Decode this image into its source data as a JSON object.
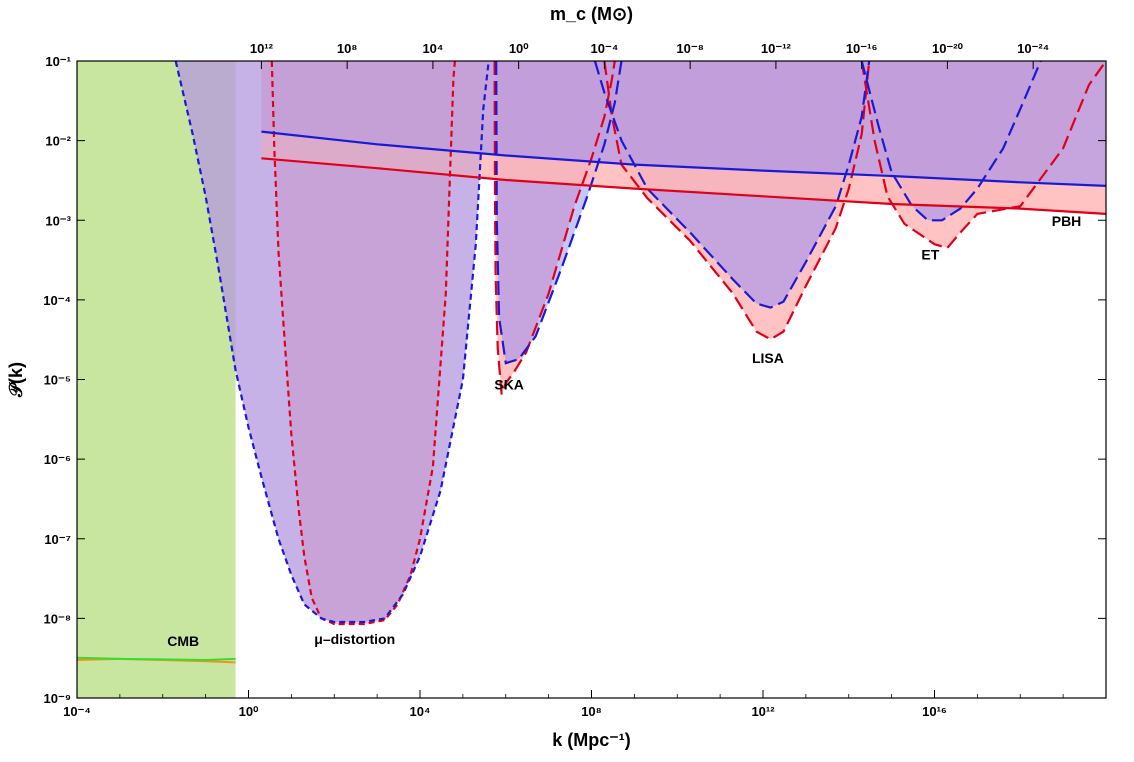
{
  "chart_data": {
    "type": "line",
    "x_scale": "log",
    "y_scale": "log",
    "xlim": [
      0.0001,
      1e+20
    ],
    "ylim": [
      1e-09,
      0.1
    ],
    "grid": false,
    "xlabel": "k (Mpc⁻¹)",
    "ylabel": "𝒫(k)",
    "top_axis_label": "m_c (M⊙)",
    "x_ticks": [
      {
        "value": 0.0001,
        "label": "10⁻⁴"
      },
      {
        "value": 1,
        "label": "10⁰"
      },
      {
        "value": 10000,
        "label": "10⁴"
      },
      {
        "value": 100000000.0,
        "label": "10⁸"
      },
      {
        "value": 1000000000000.0,
        "label": "10¹²"
      },
      {
        "value": 1e+16,
        "label": "10¹⁶"
      }
    ],
    "y_ticks": [
      {
        "value": 1e-09,
        "label": "10⁻⁹"
      },
      {
        "value": 1e-08,
        "label": "10⁻⁸"
      },
      {
        "value": 1e-07,
        "label": "10⁻⁷"
      },
      {
        "value": 1e-06,
        "label": "10⁻⁶"
      },
      {
        "value": 1e-05,
        "label": "10⁻⁵"
      },
      {
        "value": 0.0001,
        "label": "10⁻⁴"
      },
      {
        "value": 0.001,
        "label": "10⁻³"
      },
      {
        "value": 0.01,
        "label": "10⁻²"
      },
      {
        "value": 0.1,
        "label": "10⁻¹"
      }
    ],
    "top_ticks": [
      {
        "k": 2,
        "label": "10¹²"
      },
      {
        "k": 200,
        "label": "10⁸"
      },
      {
        "k": 20000,
        "label": "10⁴"
      },
      {
        "k": 2000000,
        "label": "10⁰"
      },
      {
        "k": 200000000,
        "label": "10⁻⁴"
      },
      {
        "k": 20000000000,
        "label": "10⁻⁸"
      },
      {
        "k": 2000000000000,
        "label": "10⁻¹²"
      },
      {
        "k": 200000000000000,
        "label": "10⁻¹⁶"
      },
      {
        "k": 20000000000000000,
        "label": "10⁻²⁰"
      },
      {
        "k": 2e+18,
        "label": "10⁻²⁴"
      }
    ],
    "annotations": [
      {
        "text": "CMB",
        "k": 0.03,
        "p": 4.5e-09
      },
      {
        "text": "μ–distortion",
        "k": 300,
        "p": 4.8e-09
      },
      {
        "text": "SKA",
        "k": 1200000,
        "p": 7.5e-06
      },
      {
        "text": "LISA",
        "k": 1300000000000.0,
        "p": 1.6e-05
      },
      {
        "text": "ET",
        "k": 8000000000000000,
        "p": 0.00032
      },
      {
        "text": "PBH",
        "k": 1.2e+19,
        "p": 0.00085
      }
    ],
    "regions": [
      {
        "name": "CMB",
        "type": "band",
        "color": "#c8e6a0",
        "k_min": 0.0001,
        "k_max": 0.5
      },
      {
        "name": "μ–distortion",
        "type": "bound",
        "color": "#c9a3d4",
        "red": [
          [
            3.5,
            0.1
          ],
          [
            4,
            0.008
          ],
          [
            5,
            0.0004
          ],
          [
            7,
            3e-05
          ],
          [
            10,
            2e-06
          ],
          [
            15,
            2.2e-07
          ],
          [
            20,
            6e-08
          ],
          [
            30,
            1.8e-08
          ],
          [
            50,
            1e-08
          ],
          [
            100,
            8.5e-09
          ],
          [
            500,
            8.5e-09
          ],
          [
            1500,
            9.5e-09
          ],
          [
            3000,
            1.5e-08
          ],
          [
            6000,
            3.5e-08
          ],
          [
            10000,
            1e-07
          ],
          [
            20000,
            8e-07
          ],
          [
            40000,
            0.00012
          ],
          [
            60000,
            0.06
          ],
          [
            65000,
            0.1
          ]
        ],
        "blue": [
          [
            0.02,
            0.1
          ],
          [
            0.05,
            0.012
          ],
          [
            0.1,
            0.002
          ],
          [
            0.2,
            0.00025
          ],
          [
            0.5,
            1.3e-05
          ],
          [
            1,
            2.5e-06
          ],
          [
            2,
            6e-07
          ],
          [
            5,
            1e-07
          ],
          [
            10,
            3.5e-08
          ],
          [
            20,
            1.5e-08
          ],
          [
            50,
            1e-08
          ],
          [
            100,
            9e-09
          ],
          [
            500,
            9e-09
          ],
          [
            1500,
            1e-08
          ],
          [
            4000,
            2e-08
          ],
          [
            10000,
            6e-08
          ],
          [
            30000,
            4e-07
          ],
          [
            100000,
            1e-05
          ],
          [
            200000,
            0.0005
          ],
          [
            300000,
            0.025
          ],
          [
            400000,
            0.1
          ]
        ]
      },
      {
        "name": "SKA",
        "type": "bound",
        "color": "#c9a3d4",
        "red": [
          [
            550000,
            0.1
          ],
          [
            560000,
            0.002
          ],
          [
            580000,
            0.0002
          ],
          [
            650000,
            2.5e-05
          ],
          [
            800000,
            6.5e-06
          ],
          [
            1000000,
            9e-06
          ],
          [
            1500000,
            1.2e-05
          ],
          [
            3000000,
            2.2e-05
          ],
          [
            10000000,
            0.00012
          ],
          [
            40000000,
            0.0015
          ],
          [
            100000000,
            0.006
          ],
          [
            200000000,
            0.02
          ],
          [
            300000000,
            0.06
          ],
          [
            350000000,
            0.1
          ]
        ],
        "blue": [
          [
            600000,
            0.1
          ],
          [
            620000,
            0.001
          ],
          [
            700000,
            6e-05
          ],
          [
            1000000,
            1.6e-05
          ],
          [
            2000000,
            1.8e-05
          ],
          [
            5000000,
            3.5e-05
          ],
          [
            20000000,
            0.00025
          ],
          [
            80000000,
            0.002
          ],
          [
            200000000,
            0.009
          ],
          [
            350000000,
            0.03
          ],
          [
            500000000,
            0.1
          ]
        ]
      },
      {
        "name": "LISA",
        "type": "bound",
        "color": "#c9a3d4",
        "red": [
          [
            200000000,
            0.1
          ],
          [
            300000000,
            0.02
          ],
          [
            500000000,
            0.005
          ],
          [
            2000000000,
            0.0019
          ],
          [
            20000000000,
            0.00055
          ],
          [
            200000000000,
            0.00012
          ],
          [
            700000000000,
            4e-05
          ],
          [
            1500000000000,
            3.2e-05
          ],
          [
            3000000000000,
            4e-05
          ],
          [
            10000000000000,
            0.00015
          ],
          [
            50000000000000,
            0.0008
          ],
          [
            100000000000000,
            0.0025
          ],
          [
            200000000000000,
            0.012
          ],
          [
            300000000000000,
            0.1
          ]
        ],
        "blue": [
          [
            120000000,
            0.1
          ],
          [
            200000000,
            0.04
          ],
          [
            500000000,
            0.01
          ],
          [
            2000000000,
            0.0025
          ],
          [
            20000000000,
            0.0007
          ],
          [
            200000000000,
            0.00018
          ],
          [
            700000000000,
            9e-05
          ],
          [
            1500000000000,
            8e-05
          ],
          [
            3000000000000,
            9.5e-05
          ],
          [
            10000000000000,
            0.0003
          ],
          [
            50000000000000,
            0.0015
          ],
          [
            100000000000000,
            0.005
          ],
          [
            200000000000000,
            0.02
          ],
          [
            300000000000000,
            0.1
          ]
        ]
      },
      {
        "name": "ET",
        "type": "bound",
        "color": "#c9a3d4",
        "red": [
          [
            200000000000000,
            0.1
          ],
          [
            400000000000000,
            0.01
          ],
          [
            800000000000000,
            0.002
          ],
          [
            2000000000000000,
            0.0009
          ],
          [
            10000000000000000,
            0.0005
          ],
          [
            20000000000000000,
            0.00045
          ],
          [
            40000000000000000,
            0.0007
          ],
          [
            100000000000000000,
            0.0012
          ],
          [
            1e+18,
            0.0015
          ],
          [
            1e+19,
            0.008
          ],
          [
            4e+19,
            0.05
          ],
          [
            1e+20,
            0.1
          ]
        ],
        "blue": [
          [
            200000000000000,
            0.1
          ],
          [
            500000000000000,
            0.015
          ],
          [
            1000000000000000,
            0.004
          ],
          [
            3000000000000000,
            0.0015
          ],
          [
            7000000000000000,
            0.001
          ],
          [
            15000000000000000,
            0.001
          ],
          [
            40000000000000000,
            0.0014
          ],
          [
            100000000000000000,
            0.0025
          ],
          [
            400000000000000000,
            0.008
          ],
          [
            1e+18,
            0.025
          ],
          [
            2e+18,
            0.06
          ],
          [
            3e+18,
            0.1
          ]
        ]
      },
      {
        "name": "PBH",
        "type": "bound_line",
        "color": "#c9a3d4",
        "red": [
          [
            2,
            0.006
          ],
          [
            1000,
            0.0045
          ],
          [
            1000000,
            0.0032
          ],
          [
            1000000000,
            0.0025
          ],
          [
            1000000000000,
            0.002
          ],
          [
            1000000000000000,
            0.0016
          ],
          [
            1e+18,
            0.0014
          ],
          [
            1e+20,
            0.0012
          ]
        ],
        "blue": [
          [
            2,
            0.013
          ],
          [
            1000,
            0.009
          ],
          [
            1000000,
            0.0065
          ],
          [
            1000000000,
            0.005
          ],
          [
            1000000000000,
            0.0042
          ],
          [
            1000000000000000,
            0.0036
          ],
          [
            1e+18,
            0.003
          ],
          [
            1e+20,
            0.0027
          ]
        ]
      },
      {
        "name": "CMB",
        "type": "observed",
        "red": [
          [
            0.0001,
            3e-09
          ],
          [
            0.001,
            3.1e-09
          ],
          [
            0.01,
            3e-09
          ],
          [
            0.1,
            2.9e-09
          ],
          [
            0.5,
            2.8e-09
          ]
        ],
        "blue": [
          [
            0.0001,
            3.2e-09
          ],
          [
            0.001,
            3.1e-09
          ],
          [
            0.01,
            3.05e-09
          ],
          [
            0.1,
            3e-09
          ],
          [
            0.5,
            3.1e-09
          ]
        ]
      }
    ],
    "colors": {
      "red": "#e0001a",
      "blue": "#1a1ad6",
      "purple": "#c9a3d4",
      "pink": "#ffb8b8",
      "cmb_green": "#c8e6a0",
      "cmb_line": "#33dd33",
      "orange": "#ff8c1a"
    }
  }
}
